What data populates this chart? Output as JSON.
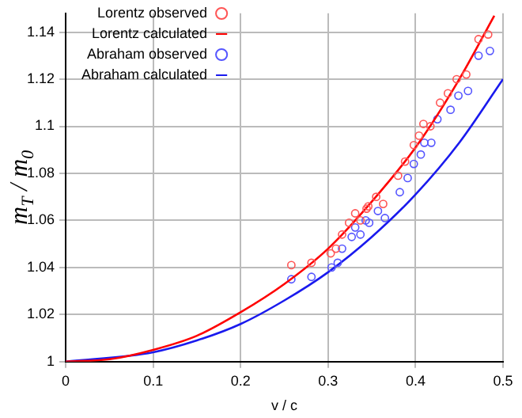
{
  "chart_data": {
    "type": "scatter",
    "xlabel": "v / c",
    "ylabel": "m$_{T}$ / m$_{0}$",
    "xlim": [
      0,
      0.5
    ],
    "xticks": [
      0,
      0.1,
      0.2,
      0.3,
      0.4,
      0.5
    ],
    "ylim": [
      1,
      1.148
    ],
    "yticks": [
      1,
      1.02,
      1.04,
      1.06,
      1.08,
      1.1,
      1.12,
      1.14
    ],
    "grid": true,
    "legend": "top left",
    "series": [
      {
        "name": "Lorentz observed",
        "marker": "circle",
        "color": "#ff5555",
        "x": [
          0.258,
          0.281,
          0.303,
          0.309,
          0.316,
          0.324,
          0.331,
          0.337,
          0.344,
          0.346,
          0.355,
          0.363,
          0.38,
          0.388,
          0.398,
          0.404,
          0.409,
          0.417,
          0.428,
          0.437,
          0.447,
          0.458,
          0.472,
          0.483
        ],
        "values": [
          1.041,
          1.042,
          1.046,
          1.048,
          1.054,
          1.059,
          1.063,
          1.06,
          1.065,
          1.066,
          1.07,
          1.067,
          1.079,
          1.085,
          1.092,
          1.096,
          1.101,
          1.1,
          1.11,
          1.114,
          1.12,
          1.122,
          1.137,
          1.139
        ]
      },
      {
        "name": "Lorentz calculated",
        "type": "line",
        "marker": "none",
        "color": "#ff0000",
        "x": [
          0,
          0.05,
          0.1,
          0.15,
          0.2,
          0.25,
          0.3,
          0.35,
          0.4,
          0.45,
          0.49
        ],
        "values": [
          1,
          1.001,
          1.005,
          1.011,
          1.021,
          1.033,
          1.048,
          1.068,
          1.091,
          1.12,
          1.147
        ]
      },
      {
        "name": "Abraham observed",
        "marker": "circle",
        "color": "#5555ff",
        "x": [
          0.258,
          0.281,
          0.304,
          0.311,
          0.316,
          0.327,
          0.331,
          0.337,
          0.343,
          0.347,
          0.357,
          0.365,
          0.382,
          0.391,
          0.398,
          0.406,
          0.41,
          0.418,
          0.425,
          0.44,
          0.449,
          0.46,
          0.472,
          0.485
        ],
        "values": [
          1.035,
          1.036,
          1.04,
          1.042,
          1.048,
          1.053,
          1.057,
          1.054,
          1.06,
          1.059,
          1.064,
          1.061,
          1.072,
          1.078,
          1.084,
          1.088,
          1.093,
          1.093,
          1.103,
          1.107,
          1.113,
          1.115,
          1.13,
          1.132
        ]
      },
      {
        "name": "Abraham calculated",
        "type": "line",
        "marker": "none",
        "color": "#1a1aee",
        "x": [
          0,
          0.1,
          0.15,
          0.2,
          0.25,
          0.3,
          0.35,
          0.4,
          0.45,
          0.5
        ],
        "values": [
          1,
          1.004,
          1.009,
          1.016,
          1.026,
          1.038,
          1.053,
          1.071,
          1.093,
          1.12
        ]
      }
    ]
  }
}
